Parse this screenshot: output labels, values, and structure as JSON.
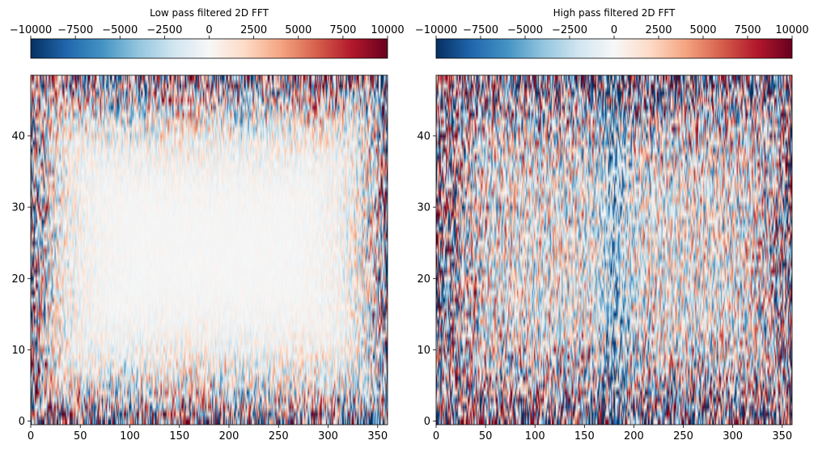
{
  "chart_data": [
    {
      "type": "heatmap",
      "title": "Low pass filtered 2D FFT",
      "xlabel": "",
      "ylabel": "",
      "xlim": [
        0,
        360
      ],
      "ylim": [
        -0.5,
        48.5
      ],
      "xticks": [
        0,
        50,
        100,
        150,
        200,
        250,
        300,
        350
      ],
      "yticks": [
        0,
        10,
        20,
        30,
        40
      ],
      "colormap": "RdBu_r",
      "colors": {
        "low": "#053061",
        "mid": "#f7f7f7",
        "high": "#67001f"
      },
      "colorbar": {
        "position": "top",
        "range": [
          -10000,
          10000
        ],
        "ticks": [
          -10000,
          -7500,
          -5000,
          -2500,
          0,
          2500,
          5000,
          7500,
          10000
        ],
        "tick_labels": [
          "−10000",
          "−7500",
          "−5000",
          "−2500",
          "0",
          "2500",
          "5000",
          "7500",
          "10000"
        ]
      },
      "description_values": {
        "center_amplitude": 300,
        "edge_amplitude": 12000
      }
    },
    {
      "type": "heatmap",
      "title": "High pass filtered 2D FFT",
      "xlabel": "",
      "ylabel": "",
      "xlim": [
        0,
        360
      ],
      "ylim": [
        -0.5,
        48.5
      ],
      "xticks": [
        0,
        50,
        100,
        150,
        200,
        250,
        300,
        350
      ],
      "yticks": [
        0,
        10,
        20,
        30,
        40
      ],
      "colormap": "RdBu_r",
      "colors": {
        "low": "#053061",
        "mid": "#f7f7f7",
        "high": "#67001f"
      },
      "colorbar": {
        "position": "top",
        "range": [
          -10000,
          10000
        ],
        "ticks": [
          -10000,
          -7500,
          -5000,
          -2500,
          0,
          2500,
          5000,
          7500,
          10000
        ],
        "tick_labels": [
          "−10000",
          "−7500",
          "−5000",
          "−2500",
          "0",
          "2500",
          "5000",
          "7500",
          "10000"
        ]
      },
      "description_values": {
        "center_amplitude": 5500,
        "edge_amplitude": 14000
      }
    }
  ]
}
